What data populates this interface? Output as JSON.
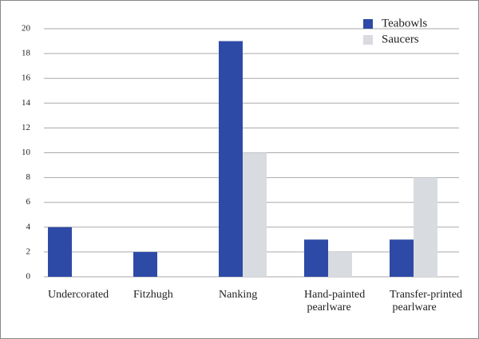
{
  "chart_data": {
    "type": "bar",
    "categories": [
      "Undercorated",
      "Fitzhugh",
      "Nanking",
      "Hand-painted pearlware",
      "Transfer-printed pearlware"
    ],
    "series": [
      {
        "name": "Teabowls",
        "color": "#2e4aa7",
        "values": [
          4,
          2,
          19,
          3,
          3
        ]
      },
      {
        "name": "Saucers",
        "color": "#d8dbdf",
        "values": [
          0,
          0,
          10,
          2,
          8
        ]
      }
    ],
    "ylim": [
      0,
      20
    ],
    "yticks": [
      0,
      2,
      4,
      6,
      8,
      10,
      12,
      14,
      16,
      18,
      20
    ],
    "grid": true,
    "legend": "top-right"
  }
}
